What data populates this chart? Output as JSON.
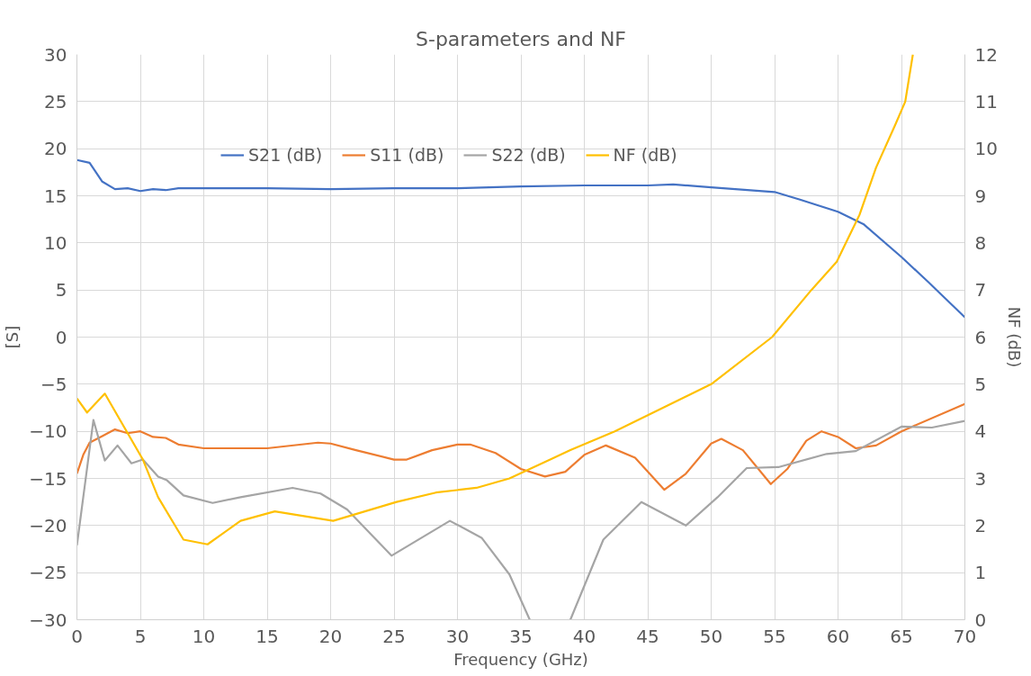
{
  "chart_data": {
    "type": "line",
    "title": "S-parameters and NF",
    "xlabel": "Frequency (GHz)",
    "ylabel": "[S]",
    "y2label": "NF (dB)",
    "xlim": [
      0,
      70
    ],
    "xticks": [
      0,
      5,
      10,
      15,
      20,
      25,
      30,
      35,
      40,
      45,
      50,
      55,
      60,
      65,
      70
    ],
    "ylim": [
      -30,
      30
    ],
    "yticks": [
      -30,
      -25,
      -20,
      -15,
      -10,
      -5,
      0,
      5,
      10,
      15,
      20,
      25,
      30
    ],
    "y2lim": [
      0,
      12
    ],
    "y2ticks": [
      0,
      1,
      2,
      3,
      4,
      5,
      6,
      7,
      8,
      9,
      10,
      11,
      12
    ],
    "grid": true,
    "legend": "top",
    "marker": "none",
    "line_style": "solid",
    "series": [
      {
        "name": "S21 (dB)",
        "color": "#4472c4",
        "x": [
          0,
          1,
          2,
          3,
          4,
          5,
          6,
          7,
          8,
          10,
          15,
          20,
          25,
          30,
          35,
          40,
          45,
          47,
          50,
          55,
          57,
          60,
          62,
          65,
          67,
          70
        ],
        "values": [
          18.8,
          18.5,
          16.5,
          15.7,
          15.8,
          15.5,
          15.7,
          15.6,
          15.8,
          15.8,
          15.8,
          15.7,
          15.8,
          15.8,
          16.0,
          16.1,
          16.1,
          16.2,
          15.9,
          15.4,
          14.6,
          13.3,
          12.0,
          8.5,
          6.0,
          2.1
        ]
      },
      {
        "name": "S11 (dB)",
        "color": "#ed7d31",
        "x": [
          0,
          0.5,
          1,
          2,
          3,
          4,
          5,
          6,
          7,
          8,
          10,
          15,
          19,
          20,
          22,
          25,
          26,
          28,
          30,
          31,
          33,
          35,
          36.9,
          38.5,
          40,
          41.7,
          44,
          46.3,
          48,
          50,
          50.8,
          52.5,
          54.7,
          56,
          57.5,
          58.7,
          60,
          61.4,
          63,
          65,
          70
        ],
        "values": [
          -14.5,
          -12.5,
          -11.2,
          -10.5,
          -9.8,
          -10.2,
          -10.0,
          -10.6,
          -10.7,
          -11.4,
          -11.8,
          -11.8,
          -11.2,
          -11.3,
          -12.0,
          -13.0,
          -13.0,
          -12.0,
          -11.4,
          -11.4,
          -12.3,
          -14.0,
          -14.8,
          -14.3,
          -12.5,
          -11.5,
          -12.8,
          -16.2,
          -14.5,
          -11.3,
          -10.8,
          -12.0,
          -15.6,
          -14.0,
          -11.0,
          -10.0,
          -10.6,
          -11.8,
          -11.5,
          -10.0,
          -7.1
        ]
      },
      {
        "name": "S22 (dB)",
        "color": "#a5a5a5",
        "x": [
          0,
          1.3,
          2.2,
          3.2,
          4.3,
          5.2,
          6.4,
          7.1,
          8.4,
          10.7,
          12.9,
          17,
          19.2,
          21.3,
          24.8,
          29.4,
          31.9,
          34.1,
          35.7,
          37.3,
          38.9,
          41.5,
          44.5,
          48,
          50.5,
          52.8,
          55.3,
          59.1,
          61.4,
          65,
          67.4,
          70
        ],
        "values": [
          -22.1,
          -8.8,
          -13.1,
          -11.5,
          -13.4,
          -13.0,
          -14.8,
          -15.2,
          -16.8,
          -17.6,
          -17.0,
          -16.0,
          -16.6,
          -18.3,
          -23.2,
          -19.5,
          -21.3,
          -25.2,
          -30,
          null,
          -30,
          -21.5,
          -17.5,
          -20.0,
          -17.0,
          -13.9,
          -13.8,
          -12.4,
          -12.1,
          -9.5,
          -9.6,
          -8.9
        ]
      },
      {
        "name": "NF (dB)",
        "color": "#ffc000",
        "axis": "y2",
        "x": [
          0,
          0.8,
          2.2,
          5.2,
          6.4,
          8.4,
          10.3,
          12.9,
          15.6,
          20.2,
          25.2,
          28.3,
          31.5,
          34.1,
          38.9,
          42.4,
          50,
          54.8,
          57.9,
          59.9,
          61.7,
          63,
          64.5,
          65.3,
          65.9
        ],
        "values": [
          4.7,
          4.4,
          4.8,
          3.4,
          2.6,
          1.7,
          1.6,
          2.1,
          2.3,
          2.1,
          2.5,
          2.7,
          2.8,
          3.0,
          3.6,
          4.0,
          5.0,
          6.0,
          7.0,
          7.6,
          8.6,
          9.6,
          10.5,
          11.0,
          12.0
        ]
      }
    ]
  }
}
